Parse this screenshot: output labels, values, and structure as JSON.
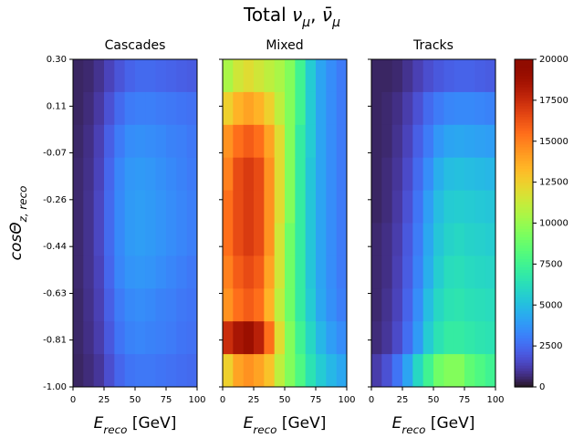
{
  "chart_data": {
    "type": "heatmap",
    "title": [
      {
        "text": "Total ",
        "sub": false,
        "italic": false
      },
      {
        "text": "ν",
        "sub": false,
        "italic": true
      },
      {
        "text": "μ",
        "sub": true,
        "italic": true
      },
      {
        "text": ", ",
        "sub": false,
        "italic": false
      },
      {
        "text": "ν̄",
        "sub": false,
        "italic": true
      },
      {
        "text": "μ",
        "sub": true,
        "italic": true
      }
    ],
    "xlabel": [
      {
        "text": "E",
        "sub": false,
        "italic": true
      },
      {
        "text": "reco",
        "sub": true,
        "italic": true
      },
      {
        "text": " [GeV]",
        "sub": false,
        "italic": false
      }
    ],
    "ylabel": [
      {
        "text": "cosΘ",
        "sub": false,
        "italic": true
      },
      {
        "text": "z, reco",
        "sub": true,
        "italic": true
      }
    ],
    "colormap": "turbo",
    "xlim": [
      0,
      100
    ],
    "xticks": [
      0,
      25,
      50,
      75,
      100
    ],
    "ylim": [
      -1.0,
      0.3
    ],
    "yticks": [
      {
        "value": -1.0,
        "label": "-1.00"
      },
      {
        "value": -0.814,
        "label": "-0.81"
      },
      {
        "value": -0.629,
        "label": "-0.63"
      },
      {
        "value": -0.443,
        "label": "-0.44"
      },
      {
        "value": -0.257,
        "label": "-0.26"
      },
      {
        "value": -0.071,
        "label": "-0.07"
      },
      {
        "value": 0.114,
        "label": "0.11"
      },
      {
        "value": 0.3,
        "label": "0.30"
      }
    ],
    "colorbar": {
      "lim": [
        0,
        20000
      ],
      "ticks": [
        0,
        2500,
        5000,
        7500,
        10000,
        12500,
        15000,
        17500,
        20000
      ]
    },
    "panels": [
      {
        "title": "Cascades",
        "values": [
          [
            500,
            600,
            900,
            1400,
            1900,
            2300,
            2500,
            2500,
            2400,
            2300,
            2200,
            2100
          ],
          [
            500,
            700,
            1100,
            1800,
            2500,
            3000,
            3100,
            3100,
            3000,
            2900,
            2800,
            2700
          ],
          [
            550,
            800,
            1300,
            2200,
            3000,
            3500,
            3600,
            3500,
            3400,
            3200,
            3100,
            2900
          ],
          [
            600,
            850,
            1400,
            2400,
            3300,
            3800,
            3900,
            3800,
            3600,
            3400,
            3200,
            3000
          ],
          [
            600,
            900,
            1500,
            2500,
            3400,
            3900,
            4000,
            3900,
            3700,
            3500,
            3300,
            3100
          ],
          [
            600,
            900,
            1500,
            2500,
            3400,
            3900,
            4000,
            3900,
            3700,
            3500,
            3300,
            3100
          ],
          [
            600,
            900,
            1400,
            2400,
            3300,
            3700,
            3800,
            3700,
            3500,
            3300,
            3100,
            2900
          ],
          [
            550,
            850,
            1300,
            2200,
            3000,
            3400,
            3500,
            3400,
            3200,
            3100,
            2900,
            2800
          ],
          [
            550,
            800,
            1200,
            2000,
            2800,
            3200,
            3300,
            3200,
            3100,
            3000,
            2800,
            2700
          ],
          [
            500,
            700,
            1000,
            1700,
            2400,
            2800,
            2900,
            2900,
            2800,
            2700,
            2600,
            2500
          ]
        ]
      },
      {
        "title": "Mixed",
        "values": [
          [
            10500,
            11500,
            12000,
            11500,
            11000,
            10500,
            9500,
            7500,
            5500,
            4200,
            3500,
            3000
          ],
          [
            12500,
            13500,
            14000,
            13500,
            12500,
            11000,
            9500,
            7500,
            5500,
            4200,
            3500,
            3000
          ],
          [
            14500,
            15500,
            16000,
            15500,
            14000,
            12000,
            9500,
            7000,
            5500,
            4200,
            3500,
            3000
          ],
          [
            15000,
            16500,
            17000,
            16500,
            14500,
            12000,
            9500,
            7000,
            5300,
            4200,
            3500,
            3000
          ],
          [
            15500,
            16500,
            17000,
            16500,
            14500,
            12000,
            9500,
            7000,
            5300,
            4200,
            3500,
            3000
          ],
          [
            15500,
            16500,
            17000,
            16500,
            14500,
            11500,
            9000,
            7000,
            5300,
            4200,
            3500,
            3000
          ],
          [
            15000,
            16000,
            16500,
            16000,
            14000,
            11500,
            9000,
            7000,
            5300,
            4200,
            3500,
            3000
          ],
          [
            14500,
            15500,
            16000,
            15500,
            13500,
            11000,
            9000,
            7000,
            5500,
            4300,
            3600,
            3100
          ],
          [
            17500,
            18500,
            19000,
            18000,
            15500,
            12000,
            9500,
            7500,
            6000,
            4800,
            4000,
            3500
          ],
          [
            12500,
            14000,
            14500,
            14000,
            13000,
            11000,
            9500,
            8000,
            6500,
            5500,
            4800,
            4300
          ]
        ]
      },
      {
        "title": "Tracks",
        "values": [
          [
            500,
            500,
            600,
            900,
            1300,
            1700,
            2000,
            2200,
            2300,
            2300,
            2200,
            2100
          ],
          [
            500,
            600,
            800,
            1200,
            1800,
            2500,
            3000,
            3300,
            3400,
            3400,
            3300,
            3200
          ],
          [
            500,
            600,
            900,
            1400,
            2200,
            3000,
            3800,
            4200,
            4300,
            4200,
            4100,
            4000
          ],
          [
            500,
            700,
            1000,
            1600,
            2500,
            3500,
            4500,
            5000,
            5100,
            5000,
            4900,
            4800
          ],
          [
            500,
            700,
            1100,
            1800,
            2800,
            4000,
            5000,
            5500,
            5600,
            5500,
            5400,
            5300
          ],
          [
            600,
            800,
            1200,
            2000,
            3000,
            4300,
            5300,
            5800,
            6000,
            5800,
            5700,
            5600
          ],
          [
            600,
            800,
            1300,
            2100,
            3200,
            4500,
            5600,
            6200,
            6300,
            6100,
            6000,
            5900
          ],
          [
            600,
            900,
            1400,
            2300,
            3500,
            5000,
            6000,
            6500,
            6600,
            6400,
            6300,
            6200
          ],
          [
            700,
            1000,
            1600,
            2600,
            3900,
            5500,
            6500,
            7000,
            7000,
            6800,
            6600,
            6500
          ],
          [
            1200,
            1800,
            2800,
            4200,
            6000,
            7500,
            9000,
            9500,
            9500,
            8500,
            8000,
            7500
          ]
        ]
      }
    ]
  }
}
